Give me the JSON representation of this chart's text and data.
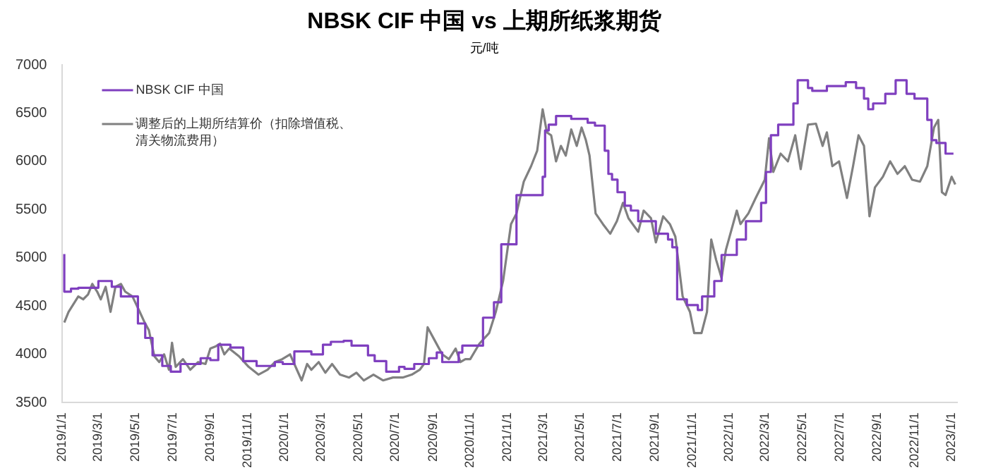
{
  "chart_data": {
    "type": "line",
    "title": "NBSK CIF 中国 vs 上期所纸浆期货",
    "subtitle": "元/吨",
    "xlim": [
      "2019-01-01",
      "2023-01-10"
    ],
    "xticks": [
      {
        "value": "2019-01-01",
        "label": "2019/1/1"
      },
      {
        "value": "2019-03-01",
        "label": "2019/3/1"
      },
      {
        "value": "2019-05-01",
        "label": "2019/5/1"
      },
      {
        "value": "2019-07-01",
        "label": "2019/7/1"
      },
      {
        "value": "2019-09-01",
        "label": "2019/9/1"
      },
      {
        "value": "2019-11-01",
        "label": "2019/11/1"
      },
      {
        "value": "2020-01-01",
        "label": "2020/1/1"
      },
      {
        "value": "2020-03-01",
        "label": "2020/3/1"
      },
      {
        "value": "2020-05-01",
        "label": "2020/5/1"
      },
      {
        "value": "2020-07-01",
        "label": "2020/7/1"
      },
      {
        "value": "2020-09-01",
        "label": "2020/9/1"
      },
      {
        "value": "2020-11-01",
        "label": "2020/11/1"
      },
      {
        "value": "2021-01-01",
        "label": "2021/1/1"
      },
      {
        "value": "2021-03-01",
        "label": "2021/3/1"
      },
      {
        "value": "2021-05-01",
        "label": "2021/5/1"
      },
      {
        "value": "2021-07-01",
        "label": "2021/7/1"
      },
      {
        "value": "2021-09-01",
        "label": "2021/9/1"
      },
      {
        "value": "2021-11-01",
        "label": "2021/11/1"
      },
      {
        "value": "2022-01-01",
        "label": "2022/1/1"
      },
      {
        "value": "2022-03-01",
        "label": "2022/3/1"
      },
      {
        "value": "2022-05-01",
        "label": "2022/5/1"
      },
      {
        "value": "2022-07-01",
        "label": "2022/7/1"
      },
      {
        "value": "2022-09-01",
        "label": "2022/9/1"
      },
      {
        "value": "2022-11-01",
        "label": "2022/11/1"
      },
      {
        "value": "2023-01-01",
        "label": "2023/1/1"
      }
    ],
    "ylim": [
      3500,
      7000
    ],
    "yticks": [
      3500,
      4000,
      4500,
      5000,
      5500,
      6000,
      6500,
      7000
    ],
    "grid": false,
    "legend": "top left",
    "marker": "none",
    "line_style": "solid",
    "series": [
      {
        "name": "NBSK CIF 中国",
        "type": "step",
        "color": "#7f3fbf",
        "x": [
          "2019-01-04",
          "2019-01-15",
          "2019-01-27",
          "2019-03-01",
          "2019-03-23",
          "2019-04-07",
          "2019-05-05",
          "2019-05-17",
          "2019-05-29",
          "2019-06-14",
          "2019-06-28",
          "2019-07-14",
          "2019-08-16",
          "2019-09-01",
          "2019-09-14",
          "2019-10-04",
          "2019-10-25",
          "2019-11-16",
          "2019-12-16",
          "2019-12-29",
          "2020-01-17",
          "2020-02-14",
          "2020-03-04",
          "2020-03-17",
          "2020-04-07",
          "2020-04-20",
          "2020-05-17",
          "2020-05-28",
          "2020-06-16",
          "2020-07-07",
          "2020-07-16",
          "2020-08-01",
          "2020-08-25",
          "2020-09-07",
          "2020-09-16",
          "2020-10-13",
          "2020-10-19",
          "2020-11-22",
          "2020-12-10",
          "2020-12-22",
          "2021-01-16",
          "2021-02-28",
          "2021-03-04",
          "2021-03-10",
          "2021-03-22",
          "2021-04-16",
          "2021-05-13",
          "2021-05-25",
          "2021-06-10",
          "2021-06-16",
          "2021-06-22",
          "2021-07-01",
          "2021-07-13",
          "2021-07-23",
          "2021-08-04",
          "2021-09-02",
          "2021-09-22",
          "2021-09-29",
          "2021-10-07",
          "2021-10-23",
          "2021-11-10",
          "2021-11-17",
          "2021-12-07",
          "2021-12-19",
          "2022-01-13",
          "2022-01-28",
          "2022-02-22",
          "2022-03-02",
          "2022-03-10",
          "2022-03-22",
          "2022-04-16",
          "2022-04-23",
          "2022-05-10",
          "2022-05-17",
          "2022-06-10",
          "2022-07-11",
          "2022-07-28",
          "2022-08-10",
          "2022-08-17",
          "2022-08-25",
          "2022-09-14",
          "2022-10-01",
          "2022-10-19",
          "2022-11-01",
          "2022-11-22",
          "2022-11-29",
          "2022-12-07",
          "2022-12-22",
          "2023-01-04"
        ],
        "values": [
          5040,
          4650,
          4680,
          4690,
          4760,
          4700,
          4600,
          4320,
          4170,
          3990,
          3880,
          3820,
          3900,
          3960,
          3940,
          4100,
          4070,
          3930,
          3880,
          3920,
          3900,
          4030,
          4000,
          4100,
          4130,
          4140,
          4090,
          3990,
          3930,
          3820,
          3870,
          3850,
          3900,
          3960,
          4020,
          3920,
          4020,
          4090,
          4380,
          4540,
          5140,
          5650,
          5840,
          6320,
          6380,
          6470,
          6440,
          6400,
          6370,
          6110,
          5870,
          5810,
          5680,
          5540,
          5490,
          5380,
          5250,
          5190,
          5110,
          4570,
          4510,
          4460,
          4600,
          4760,
          5030,
          5190,
          5380,
          5570,
          5890,
          6270,
          6380,
          6600,
          6840,
          6760,
          6730,
          6780,
          6820,
          6760,
          6650,
          6540,
          6600,
          6700,
          6840,
          6700,
          6650,
          6430,
          6220,
          6190,
          6080
        ]
      },
      {
        "name": "调整后的上期所结算价（扣除增值税、清关物流费用）",
        "type": "line",
        "color": "#808080",
        "x": [
          "2019-01-04",
          "2019-01-11",
          "2019-01-19",
          "2019-01-27",
          "2019-02-04",
          "2019-02-12",
          "2019-02-19",
          "2019-02-27",
          "2019-03-05",
          "2019-03-13",
          "2019-03-21",
          "2019-03-29",
          "2019-04-07",
          "2019-04-14",
          "2019-04-26",
          "2019-05-08",
          "2019-05-16",
          "2019-05-23",
          "2019-06-01",
          "2019-06-09",
          "2019-06-17",
          "2019-06-25",
          "2019-06-30",
          "2019-07-06",
          "2019-07-18",
          "2019-07-30",
          "2019-08-12",
          "2019-08-24",
          "2019-09-01",
          "2019-09-09",
          "2019-09-17",
          "2019-09-24",
          "2019-10-02",
          "2019-10-18",
          "2019-11-03",
          "2019-11-19",
          "2019-12-04",
          "2019-12-16",
          "2019-12-28",
          "2020-01-10",
          "2020-01-17",
          "2020-01-29",
          "2020-02-07",
          "2020-02-14",
          "2020-02-26",
          "2020-03-08",
          "2020-03-19",
          "2020-04-01",
          "2020-04-16",
          "2020-04-28",
          "2020-05-10",
          "2020-05-26",
          "2020-06-11",
          "2020-06-27",
          "2020-07-13",
          "2020-07-28",
          "2020-08-10",
          "2020-08-17",
          "2020-08-23",
          "2020-09-04",
          "2020-09-16",
          "2020-09-27",
          "2020-10-08",
          "2020-10-16",
          "2020-10-24",
          "2020-11-01",
          "2020-11-16",
          "2020-12-02",
          "2020-12-13",
          "2020-12-25",
          "2021-01-07",
          "2021-01-16",
          "2021-01-28",
          "2021-02-09",
          "2021-02-19",
          "2021-02-28",
          "2021-03-07",
          "2021-03-14",
          "2021-03-22",
          "2021-03-30",
          "2021-04-07",
          "2021-04-16",
          "2021-04-25",
          "2021-05-03",
          "2021-05-10",
          "2021-05-16",
          "2021-05-26",
          "2021-06-07",
          "2021-06-19",
          "2021-06-30",
          "2021-07-10",
          "2021-07-19",
          "2021-08-04",
          "2021-08-13",
          "2021-08-25",
          "2021-09-02",
          "2021-09-14",
          "2021-09-25",
          "2021-10-04",
          "2021-10-16",
          "2021-10-28",
          "2021-11-04",
          "2021-11-16",
          "2021-11-25",
          "2021-12-02",
          "2021-12-10",
          "2021-12-19",
          "2021-12-26",
          "2022-01-13",
          "2022-01-19",
          "2022-02-01",
          "2022-02-13",
          "2022-02-28",
          "2022-03-07",
          "2022-03-14",
          "2022-03-26",
          "2022-04-07",
          "2022-04-19",
          "2022-04-28",
          "2022-05-10",
          "2022-05-23",
          "2022-06-03",
          "2022-06-10",
          "2022-06-19",
          "2022-06-30",
          "2022-07-13",
          "2022-07-23",
          "2022-08-01",
          "2022-08-10",
          "2022-08-19",
          "2022-08-28",
          "2022-09-10",
          "2022-09-22",
          "2022-10-04",
          "2022-10-16",
          "2022-10-28",
          "2022-11-10",
          "2022-11-22",
          "2022-12-03",
          "2022-12-10",
          "2022-12-16",
          "2022-12-22",
          "2023-01-01",
          "2023-01-07"
        ],
        "values": [
          4330,
          4440,
          4520,
          4600,
          4570,
          4620,
          4730,
          4650,
          4570,
          4700,
          4440,
          4700,
          4730,
          4650,
          4600,
          4440,
          4330,
          4250,
          3980,
          3920,
          4000,
          3840,
          4120,
          3870,
          3950,
          3840,
          3920,
          3900,
          4060,
          4080,
          4110,
          4000,
          4060,
          3980,
          3870,
          3790,
          3840,
          3920,
          3950,
          4000,
          3900,
          3730,
          3900,
          3840,
          3920,
          3810,
          3900,
          3790,
          3760,
          3810,
          3730,
          3790,
          3730,
          3760,
          3760,
          3790,
          3840,
          3900,
          4280,
          4140,
          4000,
          3950,
          4060,
          3920,
          3950,
          3950,
          4110,
          4220,
          4440,
          4760,
          5350,
          5460,
          5790,
          5950,
          6110,
          6540,
          6300,
          6270,
          6000,
          6160,
          6060,
          6330,
          6160,
          6350,
          6220,
          6060,
          5460,
          5350,
          5250,
          5380,
          5570,
          5410,
          5270,
          5490,
          5410,
          5160,
          5430,
          5350,
          5220,
          4600,
          4440,
          4220,
          4220,
          4440,
          5190,
          4980,
          4790,
          5080,
          5490,
          5350,
          5460,
          5620,
          5810,
          6240,
          5890,
          6080,
          6000,
          6270,
          5920,
          6380,
          6390,
          6160,
          6300,
          5950,
          6000,
          5620,
          5950,
          6270,
          6160,
          5430,
          5730,
          5840,
          6000,
          5870,
          5950,
          5810,
          5790,
          5950,
          6350,
          6430,
          5680,
          5650,
          5840,
          5760
        ]
      }
    ]
  }
}
